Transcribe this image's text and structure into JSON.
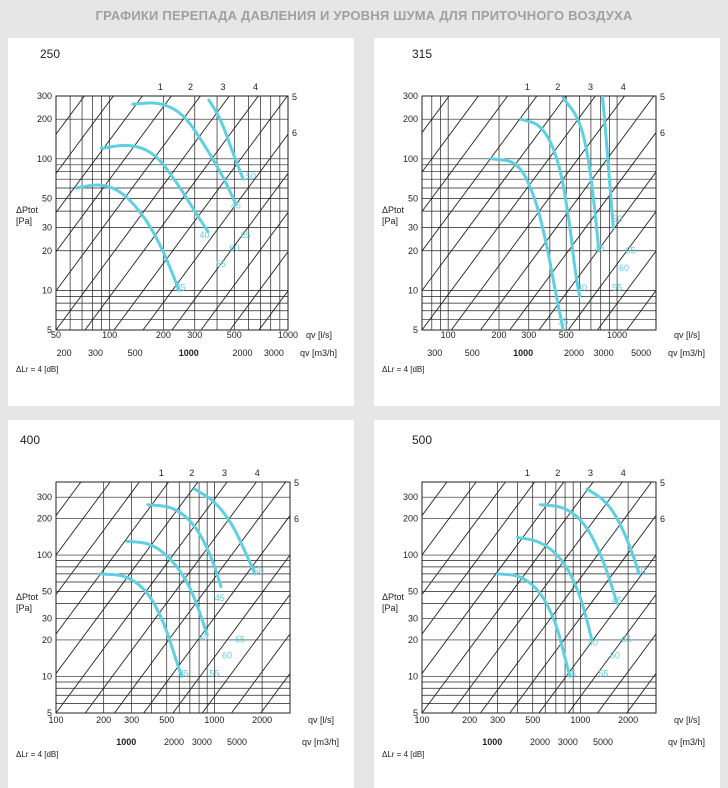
{
  "header": {
    "title": "ГРАФИКИ ПЕРЕПАДА ДАВЛЕНИЯ И УРОВНЯ ШУМА ДЛЯ ПРИТОЧНОГО ВОЗДУХА"
  },
  "colors": {
    "curve": "#5fd0e0",
    "grid": "#222222",
    "panel": "#ffffff",
    "background": "#e6e6e6",
    "header_text": "#a0a0a0"
  },
  "chart_data": [
    {
      "type": "line",
      "title": "250",
      "ylabel": "ΔPtot [Pa]",
      "xlabel_ls": "qv [l/s]",
      "xlabel_m3h": "qv [m3/h]",
      "note": "ΔLr = 4 [dB]",
      "xscale": "log",
      "yscale": "log",
      "xlim": [
        50,
        1000
      ],
      "ylim": [
        5,
        300
      ],
      "yticks": [
        "5",
        "10",
        "20",
        "30",
        "50",
        "100",
        "200",
        "300"
      ],
      "xticks_ls": [
        "50",
        "100",
        "200",
        "300",
        "500",
        "1000"
      ],
      "xticks_m3h": [
        "200",
        "300",
        "500",
        "1000",
        "2000",
        "3000"
      ],
      "line_labels": [
        "1",
        "2",
        "3",
        "4",
        "5",
        "6"
      ],
      "series": [
        {
          "x": [
            65,
            90,
            120,
            160,
            200,
            245
          ],
          "y": [
            60,
            65,
            55,
            35,
            20,
            10
          ]
        },
        {
          "x": [
            90,
            130,
            180,
            240,
            300,
            355
          ],
          "y": [
            120,
            130,
            110,
            65,
            40,
            28
          ]
        },
        {
          "x": [
            135,
            190,
            260,
            350,
            440,
            510
          ],
          "y": [
            260,
            270,
            220,
            120,
            70,
            45
          ]
        },
        {
          "x": [
            360,
            420,
            480,
            560
          ],
          "y": [
            280,
            200,
            120,
            70
          ]
        }
      ],
      "noise_labels": [
        {
          "x": 250,
          "y": 10,
          "text": "35"
        },
        {
          "x": 340,
          "y": 25,
          "text": "40"
        },
        {
          "x": 510,
          "y": 42,
          "text": "45"
        },
        {
          "x": 620,
          "y": 70,
          "text": "50"
        },
        {
          "x": 420,
          "y": 15,
          "text": "55"
        },
        {
          "x": 500,
          "y": 20,
          "text": "60"
        },
        {
          "x": 580,
          "y": 25,
          "text": "65"
        }
      ]
    },
    {
      "type": "line",
      "title": "315",
      "ylabel": "ΔPtot [Pa]",
      "xlabel_ls": "qv [l/s]",
      "xlabel_m3h": "qv [m3/h]",
      "note": "ΔLr = 4 [dB]",
      "xscale": "log",
      "yscale": "log",
      "xlim": [
        70,
        1700
      ],
      "ylim": [
        5,
        300
      ],
      "yticks": [
        "5",
        "10",
        "20",
        "30",
        "50",
        "100",
        "200",
        "300"
      ],
      "xticks_ls": [
        "100",
        "200",
        "300",
        "500",
        "1000"
      ],
      "xticks_m3h": [
        "300",
        "500",
        "1000",
        "2000",
        "3000",
        "5000"
      ],
      "line_labels": [
        "1",
        "2",
        "3",
        "4",
        "5",
        "6"
      ],
      "series": [
        {
          "x": [
            180,
            260,
            330,
            390,
            430,
            480
          ],
          "y": [
            100,
            95,
            50,
            20,
            10,
            5
          ]
        },
        {
          "x": [
            270,
            360,
            450,
            520,
            560,
            600
          ],
          "y": [
            200,
            180,
            100,
            35,
            15,
            9
          ]
        },
        {
          "x": [
            480,
            600,
            680,
            740,
            780
          ],
          "y": [
            290,
            200,
            100,
            40,
            20
          ]
        },
        {
          "x": [
            820,
            860,
            900,
            950
          ],
          "y": [
            300,
            150,
            70,
            30
          ]
        }
      ],
      "noise_labels": [
        {
          "x": 480,
          "y": 5.5,
          "text": "35"
        },
        {
          "x": 620,
          "y": 10,
          "text": "40"
        },
        {
          "x": 790,
          "y": 20,
          "text": "45"
        },
        {
          "x": 1000,
          "y": 33,
          "text": "50"
        },
        {
          "x": 1000,
          "y": 10,
          "text": "55"
        },
        {
          "x": 1100,
          "y": 14,
          "text": "60"
        },
        {
          "x": 1200,
          "y": 19,
          "text": "65"
        }
      ]
    },
    {
      "type": "line",
      "title": "400",
      "ylabel": "ΔPtot [Pa]",
      "xlabel_ls": "qv [l/s]",
      "xlabel_m3h": "qv [m3/h]",
      "note": "ΔLr = 4 [dB]",
      "xscale": "log",
      "yscale": "log",
      "xlim": [
        100,
        3000
      ],
      "ylim": [
        5,
        400
      ],
      "yticks": [
        "5",
        "10",
        "20",
        "30",
        "50",
        "100",
        "200",
        "300"
      ],
      "xticks_ls": [
        "100",
        "200",
        "300",
        "500",
        "1000",
        "2000"
      ],
      "xticks_m3h": [
        "1000",
        "2000",
        "3000",
        "5000"
      ],
      "line_labels": [
        "1",
        "2",
        "3",
        "4",
        "5",
        "6"
      ],
      "series": [
        {
          "x": [
            190,
            280,
            380,
            480,
            560,
            620
          ],
          "y": [
            70,
            68,
            50,
            28,
            15,
            10
          ]
        },
        {
          "x": [
            280,
            400,
            550,
            700,
            800,
            900
          ],
          "y": [
            130,
            125,
            90,
            55,
            35,
            22
          ]
        },
        {
          "x": [
            380,
            550,
            750,
            950,
            1100
          ],
          "y": [
            260,
            250,
            180,
            100,
            55
          ]
        },
        {
          "x": [
            750,
            1000,
            1300,
            1600,
            1800
          ],
          "y": [
            350,
            280,
            180,
            100,
            70
          ]
        }
      ],
      "noise_labels": [
        {
          "x": 640,
          "y": 10,
          "text": "35"
        },
        {
          "x": 850,
          "y": 20,
          "text": "40"
        },
        {
          "x": 1080,
          "y": 42,
          "text": "45"
        },
        {
          "x": 1900,
          "y": 70,
          "text": "50"
        },
        {
          "x": 1000,
          "y": 10,
          "text": "55"
        },
        {
          "x": 1200,
          "y": 14,
          "text": "60"
        },
        {
          "x": 1450,
          "y": 19,
          "text": "65"
        }
      ]
    },
    {
      "type": "line",
      "title": "500",
      "ylabel": "ΔPtot [Pa]",
      "xlabel_ls": "qv [l/s]",
      "xlabel_m3h": "qv [m3/h]",
      "note": "ΔLr = 4 [dB]",
      "xscale": "log",
      "yscale": "log",
      "xlim": [
        100,
        3000
      ],
      "ylim": [
        5,
        400
      ],
      "yticks": [
        "5",
        "10",
        "20",
        "30",
        "50",
        "100",
        "200",
        "300"
      ],
      "xticks_ls": [
        "100",
        "200",
        "300",
        "500",
        "1000",
        "2000"
      ],
      "xticks_m3h": [
        "1000",
        "2000",
        "3000",
        "5000"
      ],
      "line_labels": [
        "1",
        "2",
        "3",
        "4",
        "5",
        "6"
      ],
      "series": [
        {
          "x": [
            300,
            420,
            560,
            700,
            790,
            860
          ],
          "y": [
            70,
            68,
            50,
            28,
            15,
            10
          ]
        },
        {
          "x": [
            400,
            560,
            760,
            950,
            1080,
            1180
          ],
          "y": [
            140,
            130,
            95,
            55,
            32,
            20
          ]
        },
        {
          "x": [
            560,
            800,
            1080,
            1350,
            1550,
            1700
          ],
          "y": [
            260,
            250,
            180,
            100,
            60,
            40
          ]
        },
        {
          "x": [
            1100,
            1450,
            1800,
            2150,
            2350
          ],
          "y": [
            350,
            280,
            180,
            100,
            70
          ]
        }
      ],
      "noise_labels": [
        {
          "x": 870,
          "y": 10,
          "text": "35"
        },
        {
          "x": 1200,
          "y": 18,
          "text": "40"
        },
        {
          "x": 1700,
          "y": 40,
          "text": "45"
        },
        {
          "x": 2400,
          "y": 70,
          "text": "50"
        },
        {
          "x": 1400,
          "y": 10,
          "text": "55"
        },
        {
          "x": 1650,
          "y": 14,
          "text": "60"
        },
        {
          "x": 1950,
          "y": 19,
          "text": "65"
        }
      ]
    }
  ]
}
